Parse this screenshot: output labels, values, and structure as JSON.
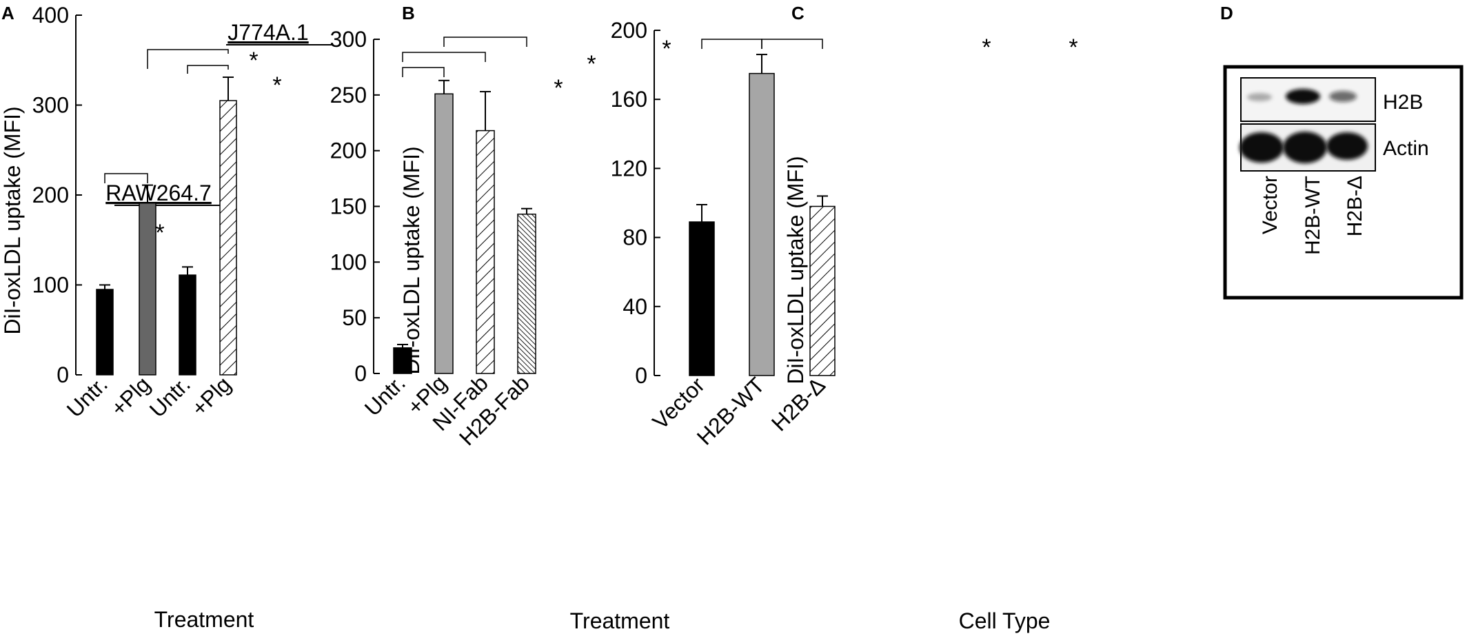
{
  "colors": {
    "black_bar": "#000000",
    "dark_gray_bar": "#666666",
    "light_gray_bar": "#a6a6a6",
    "hatch_bar": "hatched-diagonal",
    "dense_hatch_bar": "dense-hatched-diagonal",
    "blot_band": "#111111"
  },
  "chart_data": [
    {
      "panel": "A",
      "type": "bar",
      "xlabel": "Treatment",
      "ylabel": "DiI-oxLDL uptake (MFI)",
      "ylim": [
        0,
        400
      ],
      "yticks": [
        "0",
        "100",
        "200",
        "300",
        "400"
      ],
      "categories": [
        "Untr.",
        "+Plg",
        "Untr.",
        "+Plg"
      ],
      "values": [
        95,
        191,
        111,
        305
      ],
      "errors": [
        5,
        20,
        9,
        26
      ],
      "bar_styles": [
        "black",
        "dark-gray",
        "black",
        "hatch"
      ],
      "group_labels": [
        "RAW264.7",
        "J774A.1"
      ],
      "significance": [
        "*",
        "*",
        "*"
      ]
    },
    {
      "panel": "B",
      "type": "bar",
      "xlabel": "Treatment",
      "ylabel": "DiI-oxLDL uptake (MFI)",
      "ylim": [
        0,
        300
      ],
      "yticks": [
        "0",
        "50",
        "100",
        "150",
        "200",
        "250",
        "300"
      ],
      "categories": [
        "Untr.",
        "+Plg",
        "NI-Fab",
        "H2B-Fab"
      ],
      "values": [
        23,
        251,
        218,
        143
      ],
      "errors": [
        3,
        12,
        35,
        5
      ],
      "bar_styles": [
        "black",
        "light-gray",
        "hatch",
        "dense-hatch"
      ],
      "significance": [
        "*",
        "*",
        "*"
      ]
    },
    {
      "panel": "C",
      "type": "bar",
      "xlabel": "Cell Type",
      "ylabel": "DiI-oxLDL uptake (MFI)",
      "ylim": [
        0,
        200
      ],
      "yticks": [
        "0",
        "40",
        "80",
        "120",
        "160",
        "200"
      ],
      "categories": [
        "Vector",
        "H2B-WT",
        "H2B-Δ"
      ],
      "values": [
        89,
        175,
        98
      ],
      "errors": [
        10,
        11,
        6
      ],
      "bar_styles": [
        "black",
        "light-gray",
        "hatch"
      ],
      "significance": [
        "*",
        "*"
      ]
    }
  ],
  "blot": {
    "panel": "D",
    "rows": [
      "H2B",
      "Actin"
    ],
    "lanes": [
      "Vector",
      "H2B-WT",
      "H2B-Δ"
    ],
    "h2b_intensity": [
      0.3,
      1.0,
      0.6
    ],
    "actin_intensity": [
      1.0,
      1.0,
      1.0
    ]
  }
}
